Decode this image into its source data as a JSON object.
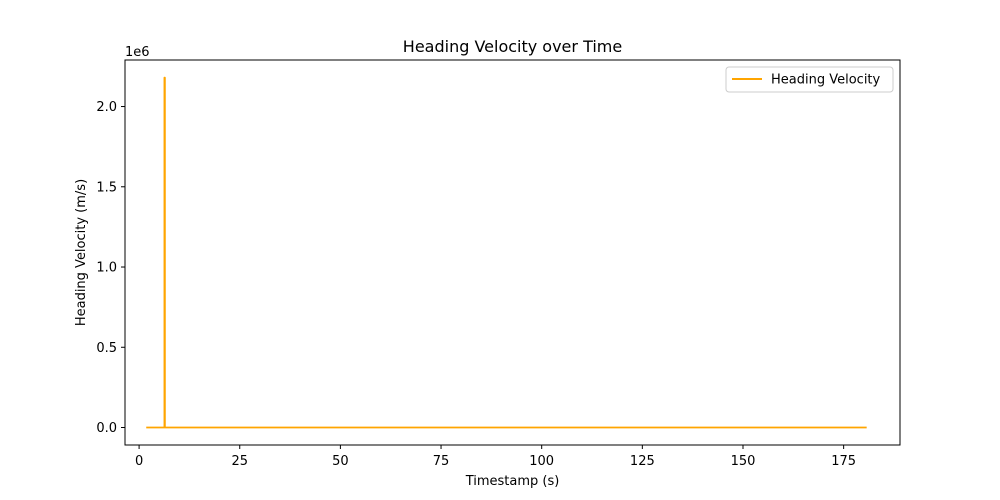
{
  "chart_data": {
    "type": "line",
    "title": "Heading Velocity over Time",
    "xlabel": "Timestamp (s)",
    "ylabel": "Heading Velocity (m/s)",
    "y_offset_label": "1e6",
    "xlim": [
      -3.5,
      189
    ],
    "ylim": [
      -109000,
      2290000
    ],
    "x_ticks": [
      0,
      25,
      50,
      75,
      100,
      125,
      150,
      175
    ],
    "x_tick_labels": [
      "0",
      "25",
      "50",
      "75",
      "100",
      "125",
      "150",
      "175"
    ],
    "y_ticks": [
      0,
      500000,
      1000000,
      1500000,
      2000000
    ],
    "y_tick_labels": [
      "0.0",
      "0.5",
      "1.0",
      "1.5",
      "2.0"
    ],
    "grid": false,
    "legend_position": "upper right",
    "series": [
      {
        "name": "Heading Velocity",
        "color": "#ffa500",
        "x": [
          2,
          6.3,
          6.3,
          6.4,
          6.4,
          180.5
        ],
        "y": [
          0,
          0,
          2180000,
          2180000,
          0,
          0
        ]
      }
    ]
  }
}
